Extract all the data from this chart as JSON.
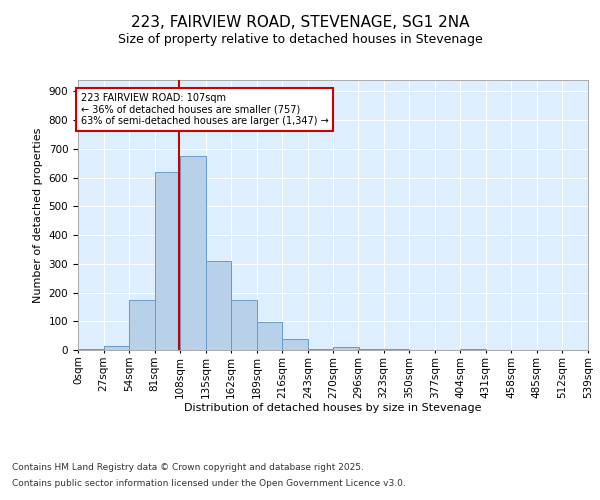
{
  "title1": "223, FAIRVIEW ROAD, STEVENAGE, SG1 2NA",
  "title2": "Size of property relative to detached houses in Stevenage",
  "xlabel": "Distribution of detached houses by size in Stevenage",
  "ylabel": "Number of detached properties",
  "bin_edges": [
    0,
    27,
    54,
    81,
    108,
    135,
    162,
    189,
    216,
    243,
    270,
    296,
    323,
    350,
    377,
    404,
    431,
    458,
    485,
    512,
    539
  ],
  "bin_labels": [
    "0sqm",
    "27sqm",
    "54sqm",
    "81sqm",
    "108sqm",
    "135sqm",
    "162sqm",
    "189sqm",
    "216sqm",
    "243sqm",
    "270sqm",
    "296sqm",
    "323sqm",
    "350sqm",
    "377sqm",
    "404sqm",
    "431sqm",
    "458sqm",
    "485sqm",
    "512sqm",
    "539sqm"
  ],
  "counts": [
    5,
    15,
    175,
    620,
    675,
    310,
    175,
    97,
    40,
    3,
    12,
    3,
    3,
    0,
    0,
    5,
    0,
    0,
    0,
    0
  ],
  "bar_color": "#b8d0e8",
  "bar_edge_color": "#6699cc",
  "vline_x": 107,
  "vline_color": "#cc0000",
  "annotation_text": "223 FAIRVIEW ROAD: 107sqm\n← 36% of detached houses are smaller (757)\n63% of semi-detached houses are larger (1,347) →",
  "annotation_box_color": "#ffffff",
  "annotation_box_edge": "#cc0000",
  "ylim": [
    0,
    940
  ],
  "yticks": [
    0,
    100,
    200,
    300,
    400,
    500,
    600,
    700,
    800,
    900
  ],
  "footnote1": "Contains HM Land Registry data © Crown copyright and database right 2025.",
  "footnote2": "Contains public sector information licensed under the Open Government Licence v3.0.",
  "background_color": "#ddeeff",
  "grid_color": "#ffffff",
  "fig_background": "#ffffff",
  "title1_fontsize": 11,
  "title2_fontsize": 9,
  "xlabel_fontsize": 8,
  "ylabel_fontsize": 8,
  "tick_fontsize": 7.5,
  "footnote_fontsize": 6.5
}
